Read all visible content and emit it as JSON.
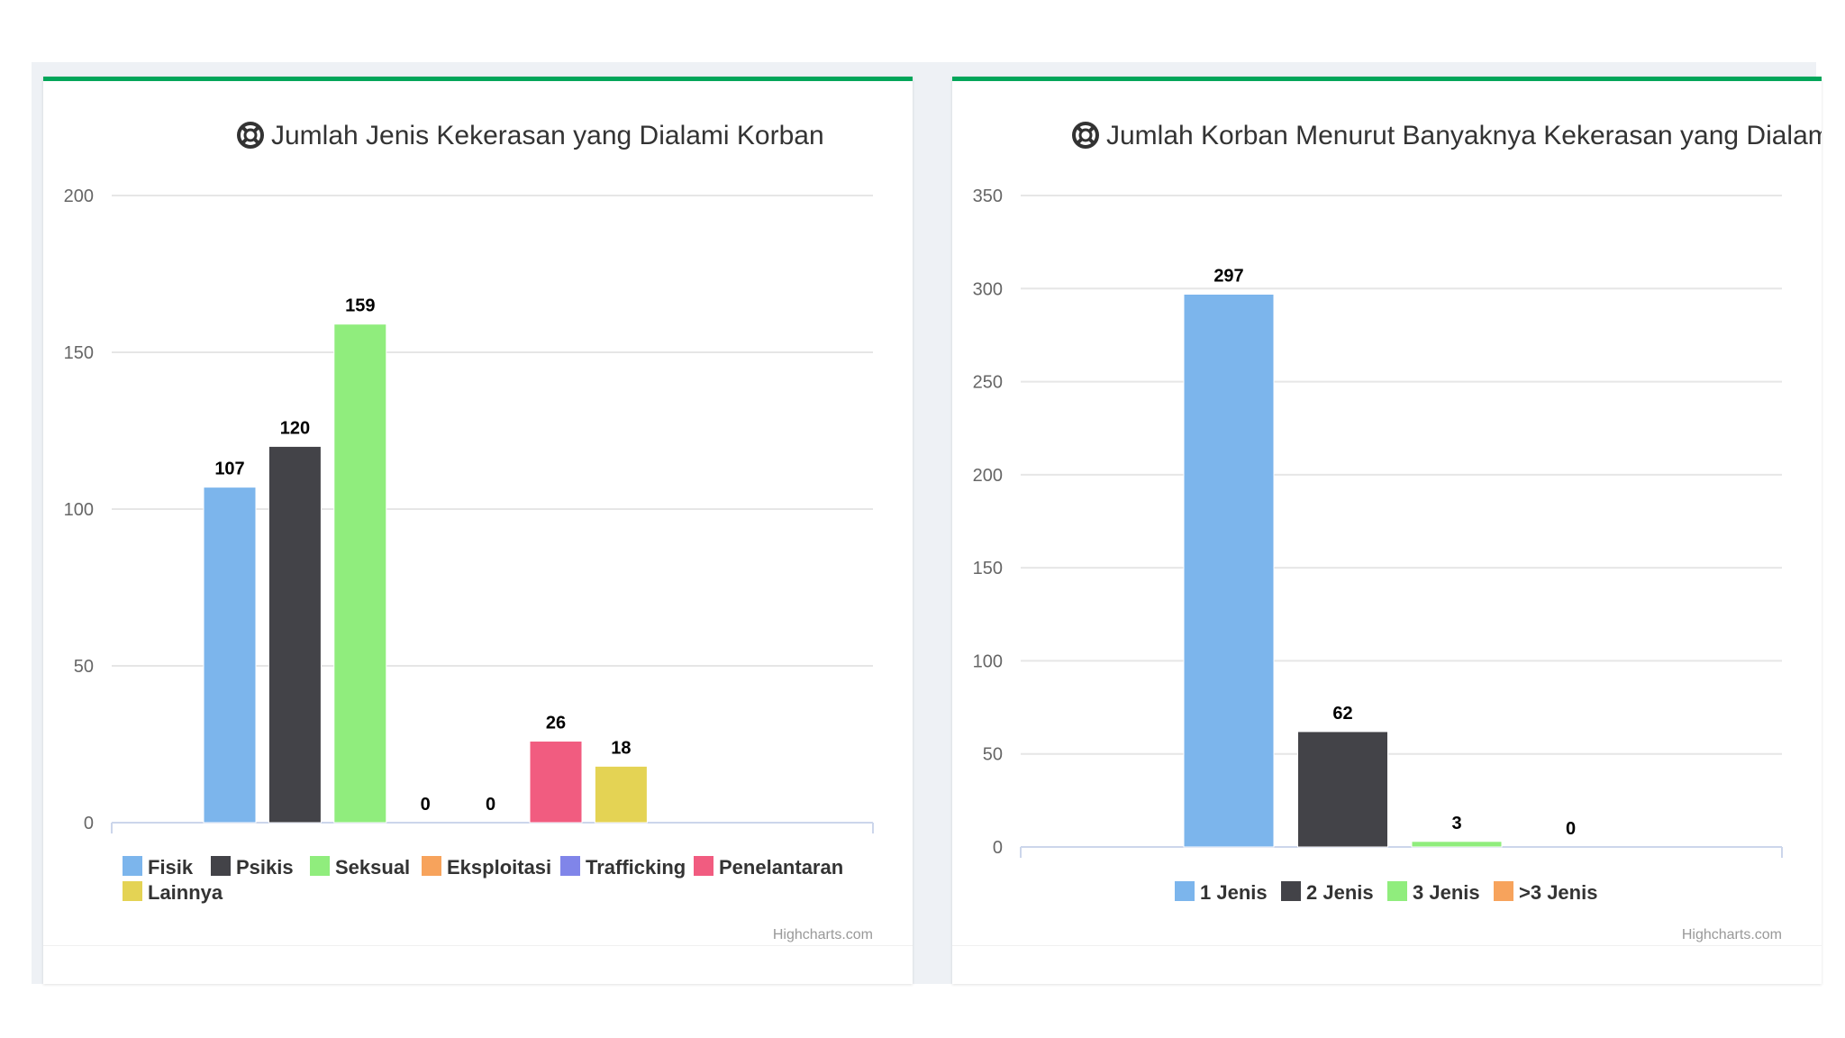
{
  "chart_data": [
    {
      "type": "bar",
      "title": "Jumlah Jenis Kekerasan yang Dialami Korban",
      "title_icon": "life-ring-icon",
      "xlabel": "",
      "ylabel": "",
      "ylim": [
        0,
        200
      ],
      "yticks": [
        0,
        50,
        100,
        150,
        200
      ],
      "categories": [
        "Fisik",
        "Psikis",
        "Seksual",
        "Eksploitasi",
        "Trafficking",
        "Penelantaran",
        "Lainnya"
      ],
      "series": [
        {
          "name": "Fisik",
          "value": 107,
          "color": "#7cb5ec"
        },
        {
          "name": "Psikis",
          "value": 120,
          "color": "#434348"
        },
        {
          "name": "Seksual",
          "value": 159,
          "color": "#90ed7d"
        },
        {
          "name": "Eksploitasi",
          "value": 0,
          "color": "#f7a35c"
        },
        {
          "name": "Trafficking",
          "value": 0,
          "color": "#8085e9"
        },
        {
          "name": "Penelantaran",
          "value": 26,
          "color": "#f15c80"
        },
        {
          "name": "Lainnya",
          "value": 18,
          "color": "#e4d354"
        }
      ],
      "legend_position": "bottom",
      "credits": "Highcharts.com"
    },
    {
      "type": "bar",
      "title": "Jumlah Korban Menurut Banyaknya Kekerasan yang Dialami",
      "title_icon": "life-ring-icon",
      "xlabel": "",
      "ylabel": "",
      "ylim": [
        0,
        350
      ],
      "yticks": [
        0,
        50,
        100,
        150,
        200,
        250,
        300,
        350
      ],
      "categories": [
        "1 Jenis",
        "2 Jenis",
        "3 Jenis",
        ">3 Jenis"
      ],
      "series": [
        {
          "name": "1 Jenis",
          "value": 297,
          "color": "#7cb5ec"
        },
        {
          "name": "2 Jenis",
          "value": 62,
          "color": "#434348"
        },
        {
          "name": "3 Jenis",
          "value": 3,
          "color": "#90ed7d"
        },
        {
          "name": ">3 Jenis",
          "value": 0,
          "color": "#f7a35c"
        }
      ],
      "legend_position": "bottom",
      "credits": "Highcharts.com"
    }
  ]
}
